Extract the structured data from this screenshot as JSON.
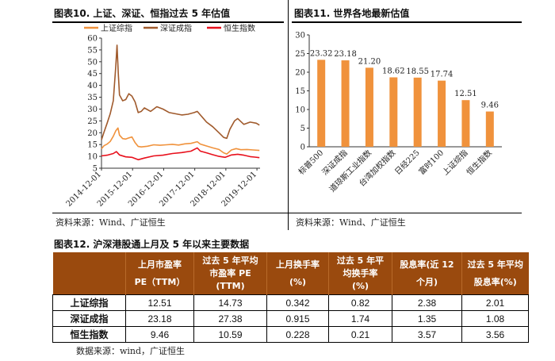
{
  "fig10": {
    "title": "图表10.  上证、深证、恒指过去 5 年估值",
    "source": "资料来源：Wind、广证恒生"
  },
  "fig11": {
    "title": "图表11.  世界各地最新估值",
    "source": "资料来源：Wind、广证恒生"
  },
  "fig12": {
    "title": "图表12.  沪深港股通上月及 5 年以来主要数据",
    "source": "数据来源：wind，广证恒生",
    "headers": [
      {
        "l1": "",
        "l2": ""
      },
      {
        "l1": "上月市盈率",
        "l2": "PE（TTM）"
      },
      {
        "l1": "过去 5 年平均",
        "l2": "市盈率 PE"
      },
      {
        "l1": "上月换手率",
        "l2": "(%)"
      },
      {
        "l1": "过去 5 年平",
        "l2": "均换手率"
      },
      {
        "l1": "股息率(近 12",
        "l2": "个月)"
      },
      {
        "l1": "过去 5 年平均",
        "l2": "股息率(%)"
      }
    ],
    "header_extra": [
      "",
      "",
      "(TTM)",
      "",
      "(%)",
      "",
      ""
    ],
    "rows": [
      {
        "label": "上证综指",
        "cells": [
          "12.51",
          "14.73",
          "0.342",
          "0.82",
          "2.38",
          "2.01"
        ]
      },
      {
        "label": "深证成指",
        "cells": [
          "23.18",
          "27.38",
          "0.915",
          "1.74",
          "1.35",
          "1.08"
        ]
      },
      {
        "label": "恒生指数",
        "cells": [
          "9.46",
          "10.59",
          "0.228",
          "0.21",
          "3.57",
          "3.56"
        ]
      }
    ]
  },
  "chart_data": [
    {
      "type": "line",
      "legend": [
        "上证综指",
        "深证成指",
        "恒生指数"
      ],
      "legend_position": "top",
      "colors": [
        "#f0923c",
        "#a05a2c",
        "#e8101c"
      ],
      "ylim": [
        5,
        60
      ],
      "yticks": [
        5,
        10,
        15,
        20,
        25,
        30,
        35,
        40,
        45,
        50,
        55,
        60
      ],
      "xlim": [
        2014.92,
        2020.02
      ],
      "xticks": [
        2014.92,
        2015.92,
        2016.92,
        2017.92,
        2018.92,
        2019.92
      ],
      "xticklabels": [
        "2014-12-01",
        "2015-12-01",
        "2016-12-01",
        "2017-12-01",
        "2018-12-01",
        "2019-12-01"
      ],
      "series": [
        {
          "name": "上证综指",
          "x": [
            2014.92,
            2015.0,
            2015.1,
            2015.2,
            2015.3,
            2015.38,
            2015.45,
            2015.5,
            2015.6,
            2015.7,
            2015.8,
            2015.9,
            2016.0,
            2016.1,
            2016.2,
            2016.4,
            2016.6,
            2016.8,
            2017.0,
            2017.2,
            2017.4,
            2017.6,
            2017.8,
            2018.0,
            2018.1,
            2018.3,
            2018.5,
            2018.7,
            2018.85,
            2018.95,
            2019.1,
            2019.25,
            2019.4,
            2019.6,
            2019.8,
            2020.0
          ],
          "y": [
            13.2,
            14.5,
            15.2,
            16.3,
            18.5,
            20.8,
            22.0,
            19.0,
            17.5,
            17.3,
            17.8,
            18.2,
            15.8,
            14.2,
            14.0,
            14.3,
            14.9,
            14.7,
            14.9,
            15.1,
            14.8,
            15.3,
            15.5,
            16.2,
            15.2,
            14.4,
            13.6,
            12.9,
            11.5,
            11.0,
            12.7,
            13.3,
            12.8,
            12.9,
            12.7,
            12.5
          ]
        },
        {
          "name": "深证成指",
          "x": [
            2014.92,
            2015.0,
            2015.1,
            2015.2,
            2015.3,
            2015.38,
            2015.42,
            2015.46,
            2015.5,
            2015.6,
            2015.7,
            2015.8,
            2015.9,
            2016.0,
            2016.1,
            2016.2,
            2016.3,
            2016.5,
            2016.7,
            2016.9,
            2017.1,
            2017.3,
            2017.5,
            2017.7,
            2017.9,
            2018.0,
            2018.1,
            2018.3,
            2018.5,
            2018.7,
            2018.85,
            2018.95,
            2019.05,
            2019.2,
            2019.3,
            2019.5,
            2019.7,
            2019.9,
            2020.0
          ],
          "y": [
            17.0,
            20.2,
            24.0,
            28.0,
            33.5,
            48.0,
            57.0,
            45.0,
            36.0,
            33.5,
            34.0,
            36.5,
            35.5,
            33.0,
            28.5,
            29.0,
            30.5,
            29.0,
            31.0,
            30.0,
            28.5,
            28.0,
            27.5,
            27.8,
            28.5,
            29.0,
            27.5,
            24.5,
            22.5,
            20.0,
            18.0,
            17.6,
            21.5,
            25.0,
            26.0,
            23.5,
            24.5,
            24.0,
            23.2
          ]
        },
        {
          "name": "恒生指数",
          "x": [
            2014.92,
            2015.1,
            2015.3,
            2015.4,
            2015.5,
            2015.7,
            2015.9,
            2016.1,
            2016.3,
            2016.6,
            2016.9,
            2017.2,
            2017.5,
            2017.8,
            2018.0,
            2018.1,
            2018.3,
            2018.5,
            2018.7,
            2018.9,
            2019.1,
            2019.3,
            2019.5,
            2019.7,
            2019.85,
            2020.0
          ],
          "y": [
            10.2,
            10.5,
            11.2,
            12.0,
            10.6,
            9.8,
            9.6,
            8.6,
            9.3,
            10.2,
            10.5,
            11.2,
            11.6,
            12.2,
            13.6,
            12.2,
            11.5,
            10.7,
            10.0,
            9.6,
            10.6,
            10.9,
            10.5,
            9.9,
            9.7,
            9.46
          ]
        }
      ]
    },
    {
      "type": "bar",
      "color": "#f0923c",
      "categories": [
        "标普500",
        "深证成指",
        "道琼斯工业指数",
        "台湾加权指数",
        "日经225",
        "富时100",
        "上证综指",
        "恒生指数"
      ],
      "values": [
        23.32,
        23.18,
        21.2,
        18.62,
        18.55,
        17.74,
        12.51,
        9.46
      ],
      "value_labels": [
        "23.32",
        "23.18",
        "21.20",
        "18.62",
        "18.55",
        "17.74",
        "12.51",
        "9.46"
      ],
      "ylim": [
        0,
        30
      ],
      "yticks": [
        0,
        5,
        10,
        15,
        20,
        25,
        30
      ]
    }
  ]
}
